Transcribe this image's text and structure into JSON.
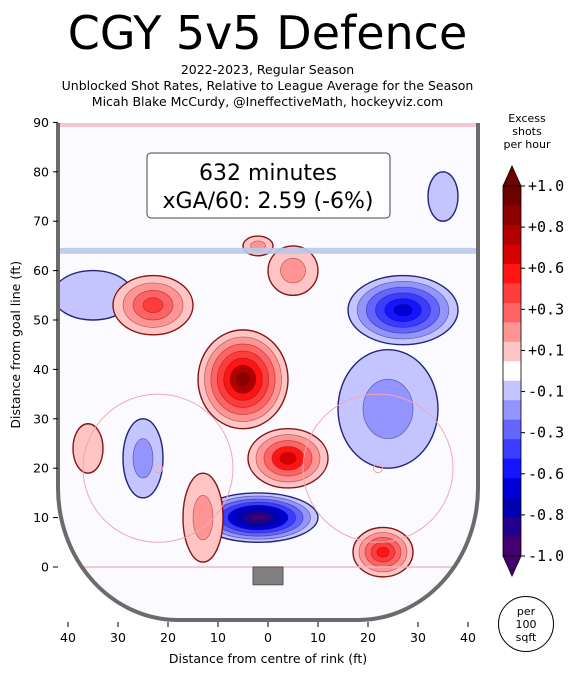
{
  "header": {
    "title": "CGY 5v5 Defence",
    "subtitle_lines": [
      "2022-2023, Regular Season",
      "Unblocked Shot Rates, Relative to League Average for the Season",
      "Micah Blake McCurdy, @IneffectiveMath, hockeyviz.com"
    ]
  },
  "summary": {
    "minutes_text": "632 minutes",
    "xga_text": "xGA/60: 2.59 (-6%)"
  },
  "colorbar": {
    "title_lines": [
      "Excess",
      "shots",
      "per hour"
    ],
    "tick_labels": [
      "+1.0",
      "+0.8",
      "+0.6",
      "+0.3",
      "+0.1",
      "-0.1",
      "-0.3",
      "-0.6",
      "-0.8",
      "-1.0"
    ],
    "colors": [
      "#6e0000",
      "#8c0000",
      "#b00000",
      "#d60000",
      "#ff1414",
      "#ff3c3c",
      "#ff6464",
      "#ff9494",
      "#ffc4c4",
      "#ffffff",
      "#c4c4ff",
      "#9494ff",
      "#6464ff",
      "#3c3cff",
      "#1414ff",
      "#0000d6",
      "#0000b0",
      "#22008c",
      "#44006e"
    ],
    "per_unit_lines": [
      "per",
      "100",
      "sqft"
    ]
  },
  "chart_data": {
    "type": "heatmap",
    "title": "CGY 5v5 Defence",
    "xlabel": "Distance from centre of rink (ft)",
    "ylabel": "Distance from goal line (ft)",
    "xlim": [
      -42.5,
      42.5
    ],
    "ylim": [
      -11,
      90
    ],
    "x_ticks": [
      -40,
      -30,
      -20,
      -10,
      0,
      10,
      20,
      30,
      40
    ],
    "x_tick_labels": [
      "40",
      "30",
      "20",
      "10",
      "0",
      "10",
      "20",
      "30",
      "40"
    ],
    "y_ticks": [
      0,
      10,
      20,
      30,
      40,
      50,
      60,
      70,
      80,
      90
    ],
    "y_tick_labels": [
      "0",
      "10",
      "20",
      "30",
      "40",
      "50",
      "60",
      "70",
      "80",
      "90"
    ],
    "color_scale": {
      "min": -1.0,
      "max": 1.0,
      "unit": "Excess shots per hour per 100 sqft"
    },
    "hotspots": [
      {
        "x": -2,
        "y": 10,
        "value": -1.0,
        "rx": 12,
        "ry": 5
      },
      {
        "x": 27,
        "y": 52,
        "value": -0.7,
        "rx": 11,
        "ry": 7
      },
      {
        "x": 24,
        "y": 32,
        "value": -0.25,
        "rx": 10,
        "ry": 12
      },
      {
        "x": -25,
        "y": 22,
        "value": -0.2,
        "rx": 4,
        "ry": 8
      },
      {
        "x": 35,
        "y": 75,
        "value": -0.15,
        "rx": 3,
        "ry": 5
      },
      {
        "x": -35,
        "y": 55,
        "value": -0.15,
        "rx": 8,
        "ry": 5
      },
      {
        "x": -5,
        "y": 38,
        "value": 0.85,
        "rx": 9,
        "ry": 10
      },
      {
        "x": 4,
        "y": 22,
        "value": 0.65,
        "rx": 8,
        "ry": 6
      },
      {
        "x": -23,
        "y": 53,
        "value": 0.5,
        "rx": 8,
        "ry": 6
      },
      {
        "x": 23,
        "y": 3,
        "value": 0.6,
        "rx": 6,
        "ry": 5
      },
      {
        "x": -13,
        "y": 10,
        "value": 0.2,
        "rx": 4,
        "ry": 9
      },
      {
        "x": 5,
        "y": 60,
        "value": 0.25,
        "rx": 5,
        "ry": 5
      },
      {
        "x": -2,
        "y": 65,
        "value": 0.2,
        "rx": 3,
        "ry": 2
      },
      {
        "x": -36,
        "y": 24,
        "value": 0.15,
        "rx": 3,
        "ry": 5
      }
    ]
  }
}
